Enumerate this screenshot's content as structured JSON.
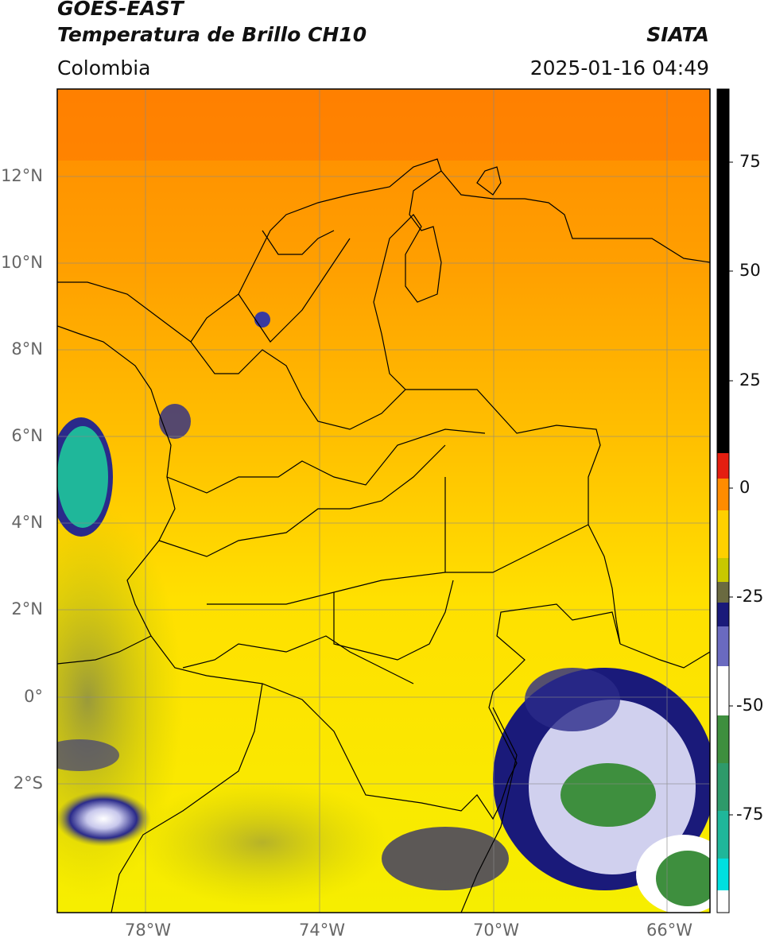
{
  "header": {
    "satellite": "GOES-EAST",
    "product": "Temperatura de Brillo CH10",
    "region": "Colombia",
    "source": "SIATA",
    "timestamp": "2025-01-16 04:49"
  },
  "map": {
    "lat_ticks": [
      "12°N",
      "10°N",
      "8°N",
      "6°N",
      "4°N",
      "2°N",
      "0°",
      "2°S"
    ],
    "lon_ticks": [
      "78°W",
      "74°W",
      "70°W",
      "66°W"
    ]
  },
  "colorbar": {
    "ticks": [
      "75",
      "50",
      "25",
      "0",
      "-25",
      "-50",
      "-75"
    ],
    "colors": {
      "warm_black": "#000000",
      "red": "#e41e10",
      "orange": "#ff8c00",
      "yellow": "#ffe800",
      "olive": "#8a8a3c",
      "navy": "#1a1a7a",
      "white": "#ffffff",
      "green": "#3e8f3e",
      "teal": "#1fb79a",
      "cyan": "#00e0e0"
    }
  }
}
